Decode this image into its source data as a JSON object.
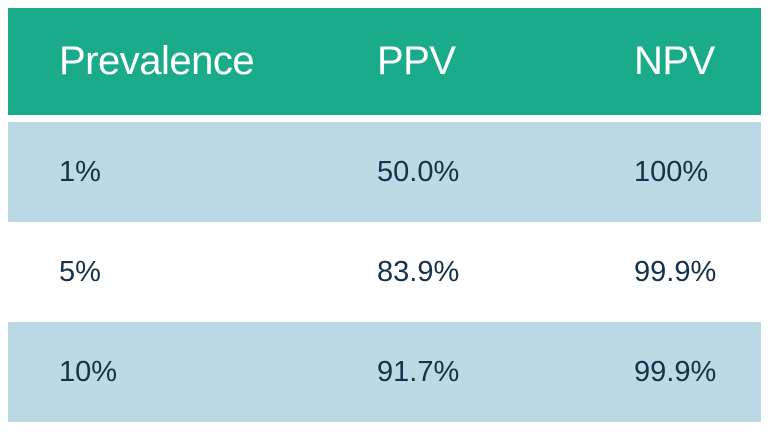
{
  "colors": {
    "header_bg": "#1aab8b",
    "row_bg": "#bcd9e6",
    "header_text": "#ffffff",
    "body_text": "#15324a"
  },
  "table": {
    "headers": [
      "Prevalence",
      "PPV",
      "NPV"
    ],
    "rows": [
      [
        "1%",
        "50.0%",
        "100%"
      ],
      [
        "5%",
        "83.9%",
        "99.9%"
      ],
      [
        "10%",
        "91.7%",
        "99.9%"
      ]
    ]
  }
}
